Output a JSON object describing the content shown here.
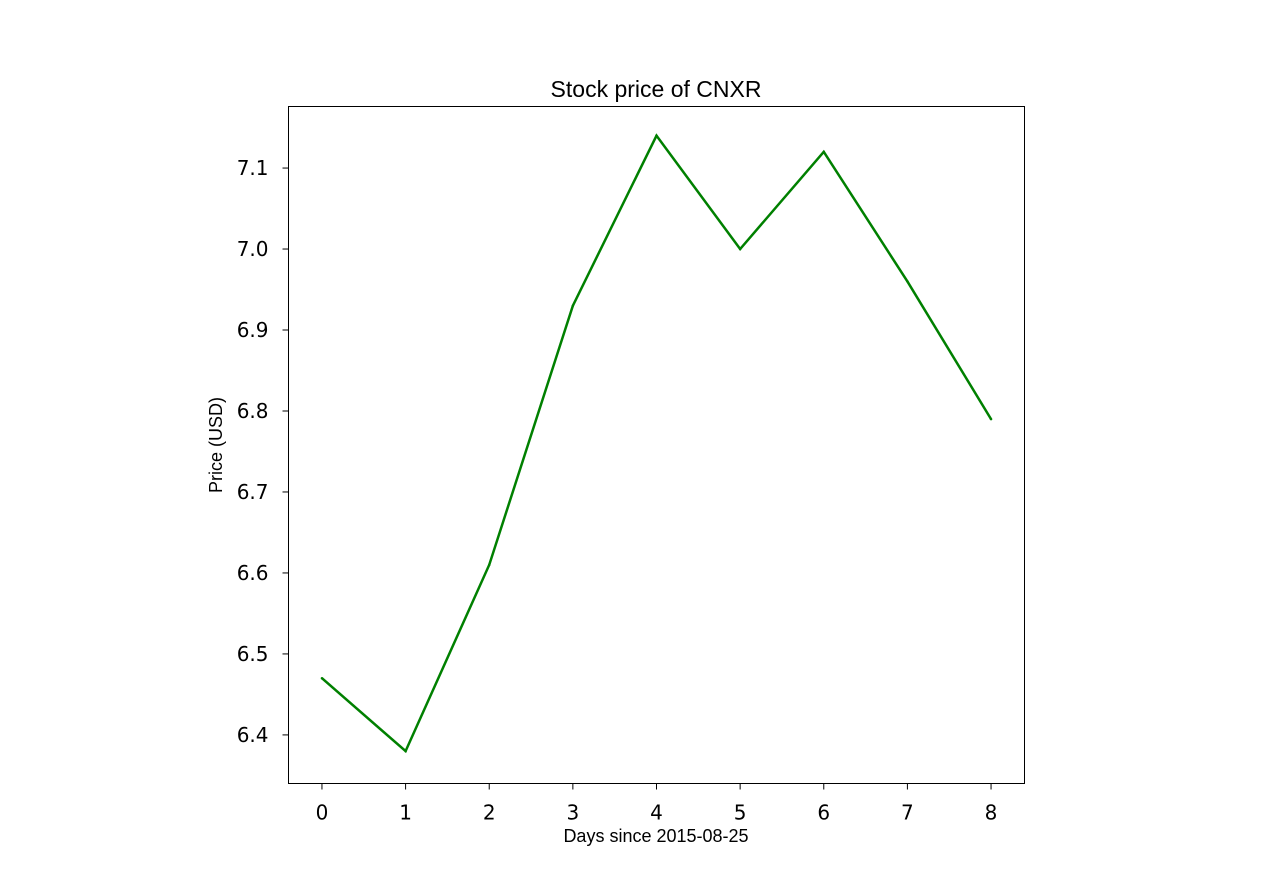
{
  "chart_data": {
    "type": "line",
    "title": "Stock price of CNXR",
    "xlabel": "Days since 2015-08-25",
    "ylabel": "Price (USD)",
    "x": [
      0,
      1,
      2,
      3,
      4,
      5,
      6,
      7,
      8
    ],
    "series": [
      {
        "values": [
          6.47,
          6.38,
          6.61,
          6.93,
          7.14,
          7.0,
          7.12,
          6.96,
          6.79
        ],
        "color": "#008000"
      }
    ],
    "xticks": [
      "0",
      "1",
      "2",
      "3",
      "4",
      "5",
      "6",
      "7",
      "8"
    ],
    "yticks": [
      "6.4",
      "6.5",
      "6.6",
      "6.7",
      "6.8",
      "6.9",
      "7.0",
      "7.1"
    ],
    "xlim": [
      -0.4,
      8.4
    ],
    "ylim": [
      6.34,
      7.176
    ],
    "grid": false,
    "legend": "none"
  }
}
